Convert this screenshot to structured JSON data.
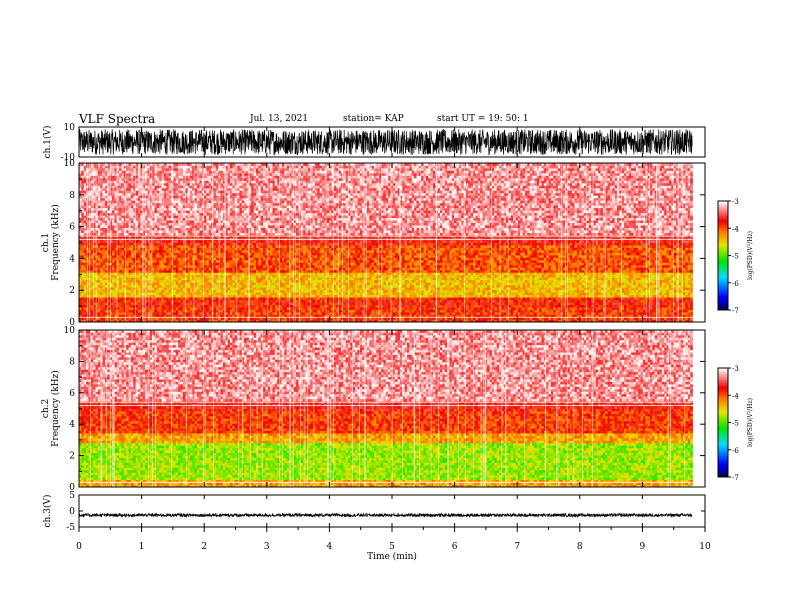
{
  "header": {
    "title": "VLF Spectra",
    "date": "Jul. 13, 2021",
    "station": "station= KAP",
    "start": "start  UT =   19: 50: 1"
  },
  "chart_data": [
    {
      "type": "line",
      "panel": "ch1-waveform",
      "ylabel": "ch.1(V)",
      "ylim": [
        -10,
        10
      ],
      "yticks": [
        "10",
        "-10"
      ],
      "xlim": [
        0,
        10
      ],
      "note": "dense black waveform saturating roughly between -9 and 9 V over 0 to 9.8 min"
    },
    {
      "type": "heatmap",
      "panel": "ch1-spectrogram",
      "ylabel": "ch.1 Frequency (kHz)",
      "ylim": [
        0,
        10
      ],
      "yticks": [
        "0",
        "2",
        "4",
        "6",
        "8",
        "10"
      ],
      "xlim": [
        0,
        10
      ],
      "data_end_min": 9.8,
      "colorbar": {
        "label": "log(PSD)(V²/Hz)",
        "range": [
          -7,
          -3
        ],
        "ticks": [
          "-3",
          "-4",
          "-5",
          "-6",
          "-7"
        ]
      },
      "bands": [
        {
          "from_khz": 0,
          "to_khz": 1.0,
          "level": -3.9
        },
        {
          "from_khz": 1.0,
          "to_khz": 1.6,
          "level": -3.8
        },
        {
          "from_khz": 1.6,
          "to_khz": 3.2,
          "level": -4.4
        },
        {
          "from_khz": 3.2,
          "to_khz": 4.8,
          "level": -4.0
        },
        {
          "from_khz": 4.8,
          "to_khz": 5.5,
          "level": -3.7
        },
        {
          "from_khz": 5.5,
          "to_khz": 10,
          "level": -3.3
        }
      ]
    },
    {
      "type": "heatmap",
      "panel": "ch2-spectrogram",
      "ylabel": "ch.2 Frequency (kHz)",
      "ylim": [
        0,
        10
      ],
      "yticks": [
        "0",
        "2",
        "4",
        "6",
        "8",
        "10"
      ],
      "xlim": [
        0,
        10
      ],
      "data_end_min": 9.8,
      "colorbar": {
        "label": "log(PSD)(V²/Hz)",
        "range": [
          -7,
          -3
        ],
        "ticks": [
          "-3",
          "-4",
          "-5",
          "-6",
          "-7"
        ]
      },
      "bands": [
        {
          "from_khz": 0,
          "to_khz": 0.5,
          "level": -4.3
        },
        {
          "from_khz": 0.5,
          "to_khz": 2.8,
          "level": -4.8
        },
        {
          "from_khz": 2.8,
          "to_khz": 3.5,
          "level": -4.3
        },
        {
          "from_khz": 3.5,
          "to_khz": 4.8,
          "level": -3.9
        },
        {
          "from_khz": 4.8,
          "to_khz": 5.5,
          "level": -3.7
        },
        {
          "from_khz": 5.5,
          "to_khz": 10,
          "level": -3.3
        }
      ]
    },
    {
      "type": "line",
      "panel": "ch3-waveform",
      "ylabel": "ch.3(V)",
      "ylim": [
        -5,
        5
      ],
      "yticks": [
        "5",
        "0",
        "-5"
      ],
      "xlim": [
        0,
        10
      ],
      "xlabel": "Time (min)",
      "xticks": [
        "0",
        "1",
        "2",
        "3",
        "4",
        "5",
        "6",
        "7",
        "8",
        "9",
        "10"
      ],
      "note": "thin dense black band near -1 V over 0 to 9.8 min"
    }
  ]
}
